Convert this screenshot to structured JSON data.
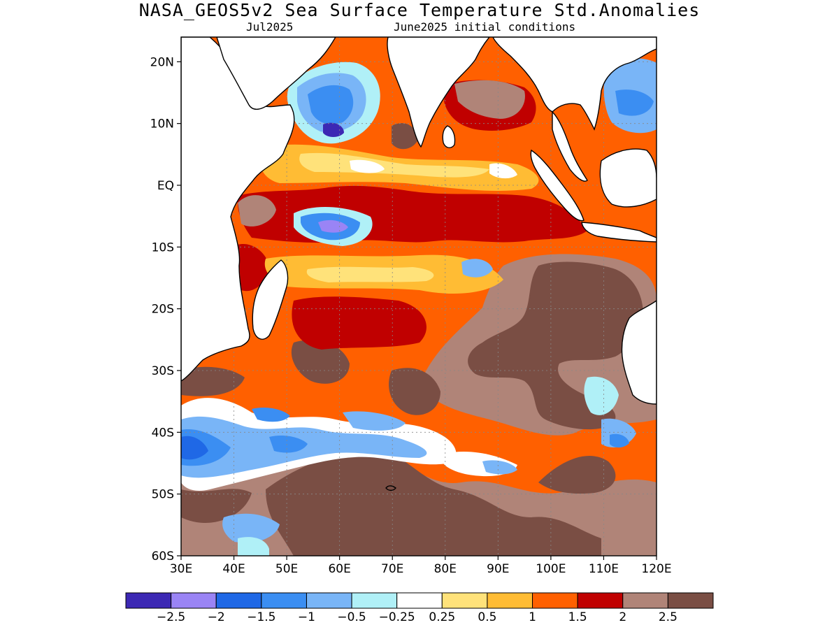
{
  "title": "NASA_GEOS5v2 Sea Surface Temperature Std.Anomalies",
  "subtitle_left": "Jul2025",
  "subtitle_right": "June2025 initial conditions",
  "map": {
    "lon_range": [
      30,
      120
    ],
    "lat_range": [
      -60,
      24
    ],
    "lat_ticks": [
      {
        "value": 20,
        "label": "20N"
      },
      {
        "value": 10,
        "label": "10N"
      },
      {
        "value": 0,
        "label": "EQ"
      },
      {
        "value": -10,
        "label": "10S"
      },
      {
        "value": -20,
        "label": "20S"
      },
      {
        "value": -30,
        "label": "30S"
      },
      {
        "value": -40,
        "label": "40S"
      },
      {
        "value": -50,
        "label": "50S"
      },
      {
        "value": -60,
        "label": "60S"
      }
    ],
    "lon_ticks": [
      {
        "value": 30,
        "label": "30E"
      },
      {
        "value": 40,
        "label": "40E"
      },
      {
        "value": 50,
        "label": "50E"
      },
      {
        "value": 60,
        "label": "60E"
      },
      {
        "value": 70,
        "label": "70E"
      },
      {
        "value": 80,
        "label": "80E"
      },
      {
        "value": 90,
        "label": "90E"
      },
      {
        "value": 100,
        "label": "100E"
      },
      {
        "value": 110,
        "label": "110E"
      },
      {
        "value": 120,
        "label": "120E"
      }
    ],
    "grid": "dotted"
  },
  "colorbar": {
    "colors": [
      "#3c28b4",
      "#9a84f5",
      "#1f68e6",
      "#3b8ef2",
      "#79b5f7",
      "#b0f0f7",
      "#ffffff",
      "#ffe27a",
      "#ffbc34",
      "#ff6000",
      "#c00000",
      "#b08478",
      "#7a4e44"
    ],
    "labels": [
      "−2.5",
      "−2",
      "−1.5",
      "−1",
      "−0.5",
      "−0.25",
      "0.25",
      "0.5",
      "1",
      "1.5",
      "2",
      "2.5"
    ]
  },
  "palette": {
    "land": "#ffffff",
    "coast": "#000000",
    "brown": "#7a4e44",
    "rose": "#b08478",
    "red": "#c00000",
    "orange": "#ff6000",
    "amber": "#ffbc34",
    "yellow": "#ffe27a",
    "white": "#ffffff",
    "cyan": "#b0f0f7",
    "lightblue": "#79b5f7",
    "blue": "#3b8ef2",
    "deepblue": "#1f68e6",
    "lavender": "#9a84f5",
    "purple": "#3c28b4"
  }
}
